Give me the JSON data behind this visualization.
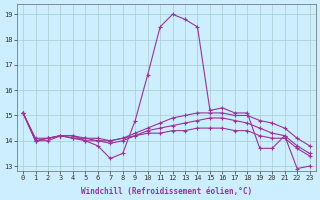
{
  "xlabel": "Windchill (Refroidissement éolien,°C)",
  "background_color": "#cceeff",
  "grid_color": "#aacccc",
  "line_color": "#993399",
  "xlim": [
    -0.5,
    23.5
  ],
  "ylim": [
    12.8,
    19.4
  ],
  "xticks": [
    0,
    1,
    2,
    3,
    4,
    5,
    6,
    7,
    8,
    9,
    10,
    11,
    12,
    13,
    14,
    15,
    16,
    17,
    18,
    19,
    20,
    21,
    22,
    23
  ],
  "yticks": [
    13,
    14,
    15,
    16,
    17,
    18,
    19
  ],
  "lines": [
    [
      15.1,
      14.0,
      14.0,
      14.2,
      14.2,
      14.0,
      13.8,
      13.3,
      13.5,
      14.8,
      16.6,
      18.5,
      19.0,
      18.8,
      18.5,
      15.2,
      15.3,
      15.1,
      15.1,
      13.7,
      13.7,
      14.2,
      12.9,
      13.0
    ],
    [
      15.1,
      14.0,
      14.1,
      14.2,
      14.1,
      14.0,
      14.0,
      14.0,
      14.1,
      14.3,
      14.5,
      14.7,
      14.9,
      15.0,
      15.1,
      15.1,
      15.1,
      15.0,
      15.0,
      14.8,
      14.7,
      14.5,
      14.1,
      13.8
    ],
    [
      15.1,
      14.0,
      14.1,
      14.2,
      14.1,
      14.1,
      14.0,
      13.9,
      14.0,
      14.2,
      14.4,
      14.5,
      14.6,
      14.7,
      14.8,
      14.9,
      14.9,
      14.8,
      14.7,
      14.5,
      14.3,
      14.2,
      13.8,
      13.5
    ],
    [
      15.1,
      14.1,
      14.1,
      14.2,
      14.2,
      14.1,
      14.1,
      14.0,
      14.1,
      14.2,
      14.3,
      14.3,
      14.4,
      14.4,
      14.5,
      14.5,
      14.5,
      14.4,
      14.4,
      14.2,
      14.1,
      14.1,
      13.7,
      13.4
    ]
  ]
}
